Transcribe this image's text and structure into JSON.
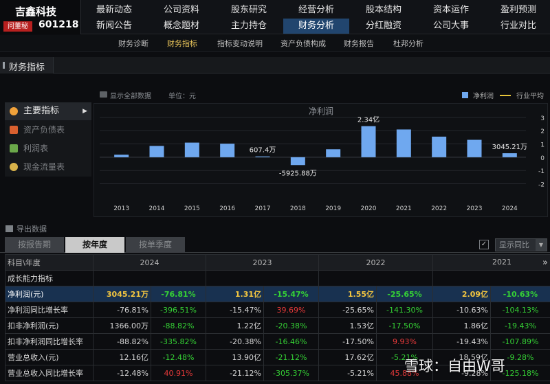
{
  "stock": {
    "name": "吉鑫科技",
    "tag": "问董秘",
    "code": "601218"
  },
  "nav": {
    "row1": [
      "最新动态",
      "公司资料",
      "股东研究",
      "经营分析",
      "股本结构",
      "资本运作",
      "盈利预测"
    ],
    "row2": [
      "新闻公告",
      "概念题材",
      "主力持仓",
      "财务分析",
      "分红融资",
      "公司大事",
      "行业对比"
    ],
    "active": "财务分析"
  },
  "subnav": {
    "items": [
      "财务诊断",
      "财务指标",
      "指标变动说明",
      "资产负债构成",
      "财务报告",
      "杜邦分析"
    ],
    "active": "财务指标"
  },
  "section": {
    "title": "财务指标"
  },
  "options": {
    "show_all": "显示全部数据",
    "unit": "单位：元",
    "legend_bar": "净利润",
    "legend_line": "行业平均"
  },
  "sidebar": {
    "items": [
      {
        "label": "主要指标",
        "icon": "gear-icon",
        "active": true
      },
      {
        "label": "资产负债表",
        "icon": "document-icon",
        "active": false
      },
      {
        "label": "利润表",
        "icon": "cubes-icon",
        "active": false
      },
      {
        "label": "现金流量表",
        "icon": "coins-icon",
        "active": false
      }
    ]
  },
  "chart_data": {
    "type": "bar",
    "title": "净利润",
    "categories": [
      "2013",
      "2014",
      "2015",
      "2016",
      "2017",
      "2018",
      "2019",
      "2020",
      "2021",
      "2022",
      "2023",
      "2024"
    ],
    "series": [
      {
        "name": "净利润",
        "values": [
          0.19,
          0.85,
          1.1,
          1.02,
          0.06,
          -0.59,
          0.6,
          2.34,
          2.09,
          1.55,
          1.31,
          0.3
        ]
      }
    ],
    "data_labels": {
      "2017": "607.4万",
      "2018": "-5925.88万",
      "2020": "2.34亿",
      "2024": "3045.21万"
    },
    "y_ticks": [
      3,
      2,
      1,
      0,
      -1,
      -2
    ],
    "ylim": [
      -2.8,
      3.2
    ],
    "grid": true,
    "legend": "top-right",
    "bar_color": "#6fa8ef"
  },
  "export_label": "导出数据",
  "view_tabs": {
    "items": [
      "按报告期",
      "按年度",
      "按单季度"
    ],
    "active": "按年度"
  },
  "yoy_select": {
    "value": "显示同比"
  },
  "table": {
    "header_first": "科目\\年度",
    "years": [
      "2024",
      "2023",
      "2022",
      "2021"
    ],
    "section_label": "成长能力指标",
    "rows": [
      {
        "label": "净利润(元)",
        "highlight": true,
        "cells": [
          [
            "3045.21万",
            "-76.81%"
          ],
          [
            "1.31亿",
            "-15.47%"
          ],
          [
            "1.55亿",
            "-25.65%"
          ],
          [
            "2.09亿",
            "-10.63%"
          ]
        ]
      },
      {
        "label": "净利润同比增长率",
        "highlight": false,
        "cells": [
          [
            "-76.81%",
            "-396.51%"
          ],
          [
            "-15.47%",
            "39.69%"
          ],
          [
            "-25.65%",
            "-141.30%"
          ],
          [
            "-10.63%",
            "-104.13%"
          ]
        ]
      },
      {
        "label": "扣非净利润(元)",
        "highlight": false,
        "cells": [
          [
            "1366.00万",
            "-88.82%"
          ],
          [
            "1.22亿",
            "-20.38%"
          ],
          [
            "1.53亿",
            "-17.50%"
          ],
          [
            "1.86亿",
            "-19.43%"
          ]
        ]
      },
      {
        "label": "扣非净利润同比增长率",
        "highlight": false,
        "cells": [
          [
            "-88.82%",
            "-335.82%"
          ],
          [
            "-20.38%",
            "-16.46%"
          ],
          [
            "-17.50%",
            "9.93%"
          ],
          [
            "-19.43%",
            "-107.89%"
          ]
        ]
      },
      {
        "label": "营业总收入(元)",
        "highlight": false,
        "cells": [
          [
            "12.16亿",
            "-12.48%"
          ],
          [
            "13.90亿",
            "-21.12%"
          ],
          [
            "17.62亿",
            "-5.21%"
          ],
          [
            "18.59亿",
            "-9.28%"
          ]
        ]
      },
      {
        "label": "营业总收入同比增长率",
        "highlight": false,
        "cells": [
          [
            "-12.48%",
            "40.91%"
          ],
          [
            "-21.12%",
            "-305.37%"
          ],
          [
            "-5.21%",
            "45.88%"
          ],
          [
            "-9.28%",
            "-125.18%"
          ]
        ]
      }
    ]
  },
  "watermark": "雪球：自由W哥"
}
